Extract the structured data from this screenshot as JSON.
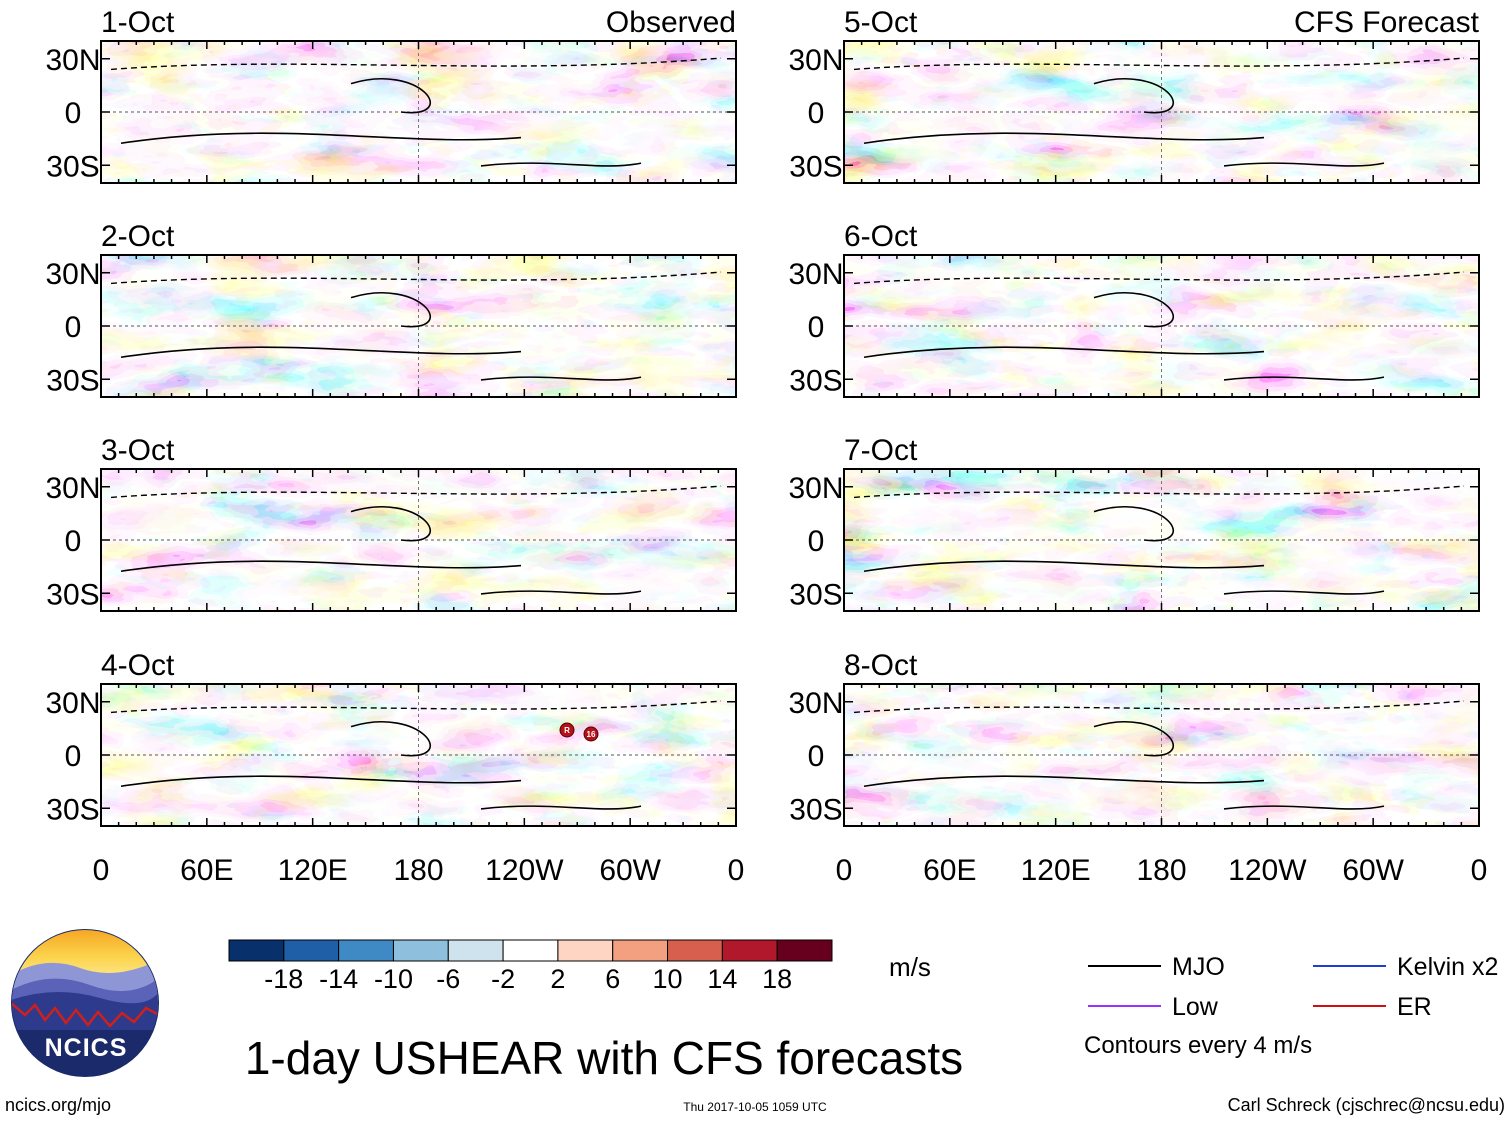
{
  "chart_data": [
    {
      "type": "heatmap",
      "title": "1-day USHEAR with CFS forecasts",
      "variable": "USHEAR",
      "units": "m/s",
      "column_labels": [
        "Observed",
        "CFS Forecast"
      ],
      "x_ticks": [
        "0",
        "60E",
        "120E",
        "180",
        "120W",
        "60W",
        "0"
      ],
      "y_ticks": [
        "30N",
        "0",
        "30S"
      ],
      "panels": [
        {
          "date": "1-Oct",
          "source": "Observed"
        },
        {
          "date": "2-Oct",
          "source": "Observed"
        },
        {
          "date": "3-Oct",
          "source": "Observed"
        },
        {
          "date": "4-Oct",
          "source": "Observed"
        },
        {
          "date": "5-Oct",
          "source": "CFS Forecast"
        },
        {
          "date": "6-Oct",
          "source": "CFS Forecast"
        },
        {
          "date": "7-Oct",
          "source": "CFS Forecast"
        },
        {
          "date": "8-Oct",
          "source": "CFS Forecast"
        }
      ],
      "colorbar": {
        "labels": [
          "-18",
          "-14",
          "-10",
          "-6",
          "-2",
          "2",
          "6",
          "10",
          "14",
          "18"
        ],
        "colors": [
          "#08306b",
          "#1f5fa8",
          "#3f8ac4",
          "#8ebfdd",
          "#cfe3ef",
          "#ffffff",
          "#fdd5c2",
          "#f2a07f",
          "#d6604d",
          "#b2182b",
          "#67001f"
        ]
      },
      "legend": [
        {
          "label": "MJO",
          "color": "#000000"
        },
        {
          "label": "Kelvin x2",
          "color": "#1f3fcf"
        },
        {
          "label": "Low",
          "color": "#9b30ff"
        },
        {
          "label": "ER",
          "color": "#d01010"
        }
      ],
      "contour_note": "Contours every 4 m/s",
      "storm_markers": [
        "R",
        "16"
      ]
    }
  ],
  "logo": {
    "text": "NCICS"
  },
  "footer": {
    "left": "ncics.org/mjo",
    "center": "Thu 2017-10-05 1059 UTC",
    "right": "Carl Schreck (cjschrec@ncsu.edu)"
  }
}
